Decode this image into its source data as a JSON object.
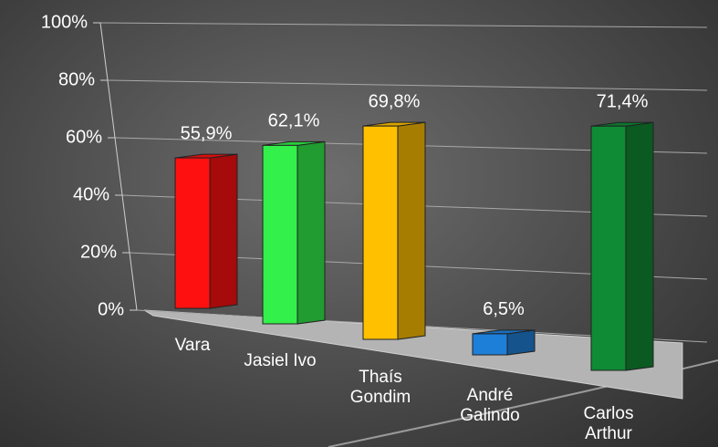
{
  "chart_data": {
    "type": "bar3d",
    "categories": [
      "Vara",
      "Jasiel Ivo",
      "Thaís Gondim",
      "André Galindo",
      "Carlos Arthur"
    ],
    "values": [
      55.9,
      62.1,
      69.8,
      6.5,
      71.4
    ],
    "value_labels": [
      "55,9%",
      "62,1%",
      "69,8%",
      "6,5%",
      "71,4%"
    ],
    "colors": [
      "#ff1010",
      "#33f04a",
      "#ffc000",
      "#1e7fd8",
      "#0f8a35"
    ],
    "ylim": [
      0,
      100
    ],
    "yticks": [
      {
        "value": 0,
        "label": "0%"
      },
      {
        "value": 20,
        "label": "20%"
      },
      {
        "value": 40,
        "label": "40%"
      },
      {
        "value": 60,
        "label": "60%"
      },
      {
        "value": 80,
        "label": "80%"
      },
      {
        "value": 100,
        "label": "100%"
      }
    ],
    "grid": true
  }
}
